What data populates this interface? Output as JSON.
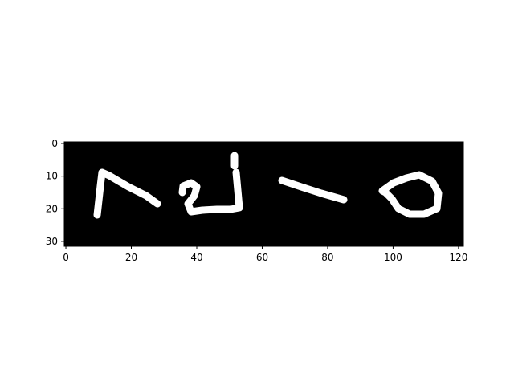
{
  "image_panel": {
    "description_colors": {
      "background": "#000000",
      "foreground": "#ffffff",
      "figure_bg": "#ffffff"
    },
    "x_extent": [
      -0.5,
      121.5
    ],
    "y_extent": [
      31.5,
      -0.5
    ],
    "x_ticks": [
      0,
      20,
      40,
      60,
      80,
      100,
      120
    ],
    "y_ticks": [
      0,
      10,
      20,
      30
    ],
    "x_tick_labels": [
      "0",
      "20",
      "40",
      "60",
      "80",
      "100",
      "120"
    ],
    "y_tick_labels": [
      "0",
      "10",
      "20",
      "30"
    ]
  }
}
